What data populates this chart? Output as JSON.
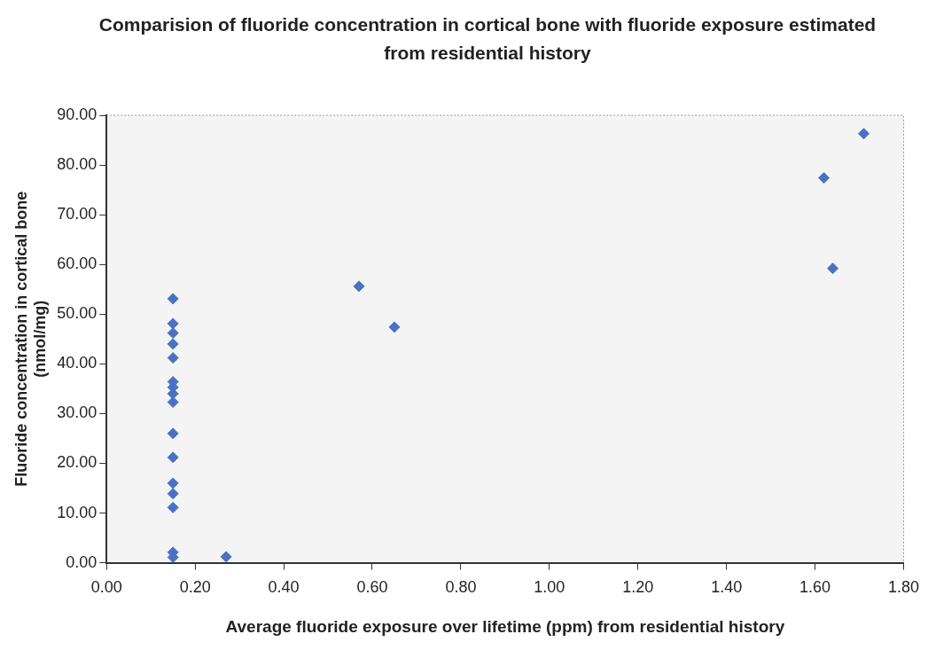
{
  "chart_data": {
    "type": "scatter",
    "title": "Comparision of fluoride concentration in cortical bone with fluoride exposure estimated from residential history",
    "xlabel": "Average fluoride exposure over lifetime (ppm) from residential history",
    "ylabel": "Fluoride concentration in cortical bone (nmol/mg)",
    "series": [
      {
        "color": "#4a72c4",
        "x": [
          0.15,
          0.15,
          0.15,
          0.15,
          0.15,
          0.15,
          0.15,
          0.15,
          0.15,
          0.15,
          0.15,
          0.15,
          0.15,
          0.15,
          0.15,
          0.15,
          0.27,
          0.57,
          0.65,
          1.62,
          1.64,
          1.71
        ],
        "values": [
          53.1,
          48.1,
          46.2,
          44.0,
          41.2,
          36.4,
          35.3,
          34.0,
          32.3,
          26.0,
          21.2,
          16.0,
          13.9,
          11.1,
          2.1,
          1.1,
          1.2,
          55.6,
          47.4,
          77.4,
          59.2,
          86.3
        ]
      }
    ],
    "xlim": [
      0,
      1.8
    ],
    "xticks": [
      {
        "value": 0,
        "label": "0.00"
      },
      {
        "value": 0.2,
        "label": "0.20"
      },
      {
        "value": 0.4,
        "label": "0.40"
      },
      {
        "value": 0.6,
        "label": "0.60"
      },
      {
        "value": 0.8,
        "label": "0.80"
      },
      {
        "value": 1.0,
        "label": "1.00"
      },
      {
        "value": 1.2,
        "label": "1.20"
      },
      {
        "value": 1.4,
        "label": "1.40"
      },
      {
        "value": 1.6,
        "label": "1.60"
      },
      {
        "value": 1.8,
        "label": "1.80"
      }
    ],
    "ylim": [
      0,
      90
    ],
    "yticks": [
      {
        "value": 0,
        "label": "0.00"
      },
      {
        "value": 10,
        "label": "10.00"
      },
      {
        "value": 20,
        "label": "20.00"
      },
      {
        "value": 30,
        "label": "30.00"
      },
      {
        "value": 40,
        "label": "40.00"
      },
      {
        "value": 50,
        "label": "50.00"
      },
      {
        "value": 60,
        "label": "60.00"
      },
      {
        "value": 70,
        "label": "70.00"
      },
      {
        "value": 80,
        "label": "80.00"
      },
      {
        "value": 90,
        "label": "90.00"
      }
    ],
    "grid": false,
    "legend": false,
    "marker": "diamond"
  }
}
